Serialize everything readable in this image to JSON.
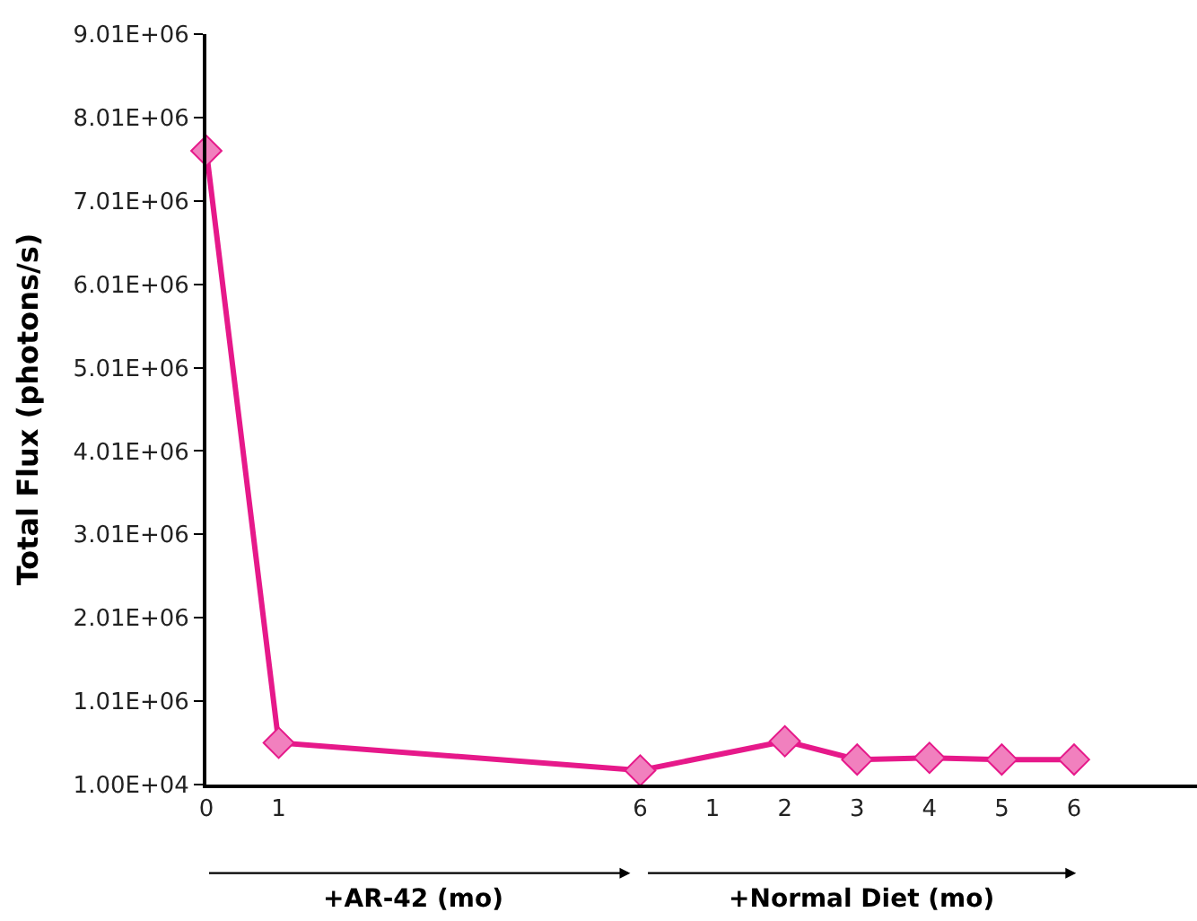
{
  "chart_data": {
    "type": "line",
    "ylabel": "Total Flux (photons/s)",
    "categories": [
      "0",
      "1",
      null,
      null,
      null,
      null,
      "6",
      "1",
      "2",
      "3",
      "4",
      "5",
      "6"
    ],
    "series": [
      {
        "color": "#e6198a",
        "values": [
          7610000,
          510000,
          null,
          null,
          null,
          null,
          180000,
          null,
          530000,
          310000,
          330000,
          310000,
          310000
        ]
      }
    ],
    "ylim": [
      10000,
      9010000
    ],
    "yticks": [
      {
        "value": 10000,
        "label": "1.00E+04"
      },
      {
        "value": 1010000,
        "label": "1.01E+06"
      },
      {
        "value": 2010000,
        "label": "2.01E+06"
      },
      {
        "value": 3010000,
        "label": "3.01E+06"
      },
      {
        "value": 4010000,
        "label": "4.01E+06"
      },
      {
        "value": 5010000,
        "label": "5.01E+06"
      },
      {
        "value": 6010000,
        "label": "6.01E+06"
      },
      {
        "value": 7010000,
        "label": "7.01E+06"
      },
      {
        "value": 8010000,
        "label": "8.01E+06"
      },
      {
        "value": 9010000,
        "label": "9.01E+06"
      }
    ],
    "annotations": [
      "+AR-42 (mo)",
      "+Normal Diet (mo)"
    ],
    "marker": "diamond",
    "line_style": "solid"
  }
}
